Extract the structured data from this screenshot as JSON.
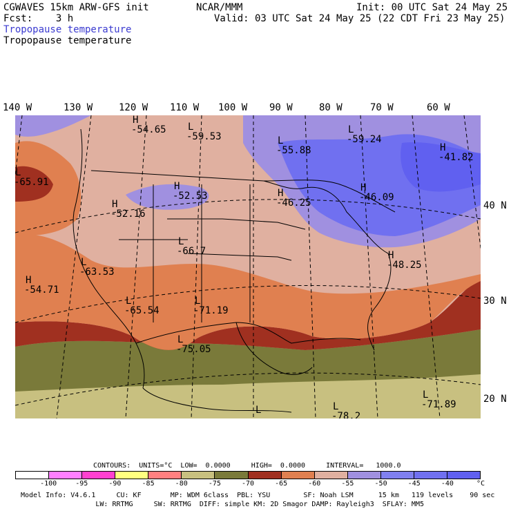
{
  "header": {
    "model": "CGWAVES 15km ARW-GFS init",
    "fcst": "Fcst:    3 h",
    "org": "NCAR/MMM",
    "init": "Init: 00 UTC Sat 24 May 25",
    "valid": "Valid: 03 UTC Sat 24 May 25 (22 CDT Fri 23 May 25)",
    "field_title_colored": "Tropopause temperature",
    "field_title": "Tropopause temperature"
  },
  "longitudes": [
    "140 W",
    "130 W",
    "120 W",
    "110 W",
    "100 W",
    "90 W",
    "80 W",
    "70 W",
    "60 W"
  ],
  "latitudes": [
    "40 N",
    "30 N",
    "20 N"
  ],
  "map_labels": [
    {
      "sym": "H",
      "val": "-54.65"
    },
    {
      "sym": "L",
      "val": "-59.53"
    },
    {
      "sym": "L",
      "val": "-55.88"
    },
    {
      "sym": "L",
      "val": "-59.24"
    },
    {
      "sym": "H",
      "val": "-41.82"
    },
    {
      "sym": "L",
      "val": "-65.91"
    },
    {
      "sym": "H",
      "val": "-52.53"
    },
    {
      "sym": "H",
      "val": "-46.25"
    },
    {
      "sym": "H",
      "val": "-46.09"
    },
    {
      "sym": "H",
      "val": "-52.16"
    },
    {
      "sym": "L",
      "val": "-66.7"
    },
    {
      "sym": "L",
      "val": "-63.53"
    },
    {
      "sym": "H",
      "val": "-48.25"
    },
    {
      "sym": "H",
      "val": "-54.71"
    },
    {
      "sym": "L",
      "val": "-65.54"
    },
    {
      "sym": "L",
      "val": "-71.19"
    },
    {
      "sym": "L",
      "val": "-75.05"
    },
    {
      "sym": "L",
      "val": "-71.89"
    },
    {
      "sym": "L",
      "val": "-78.2"
    },
    {
      "sym": "L",
      "val": ""
    }
  ],
  "contours_line": "CONTOURS:  UNITS=°C  LOW=  0.0000     HIGH=  0.0000     INTERVAL=   1000.0",
  "colorbar": {
    "colors": [
      "#ffffff",
      "#ff80ff",
      "#ff40d0",
      "#ffff80",
      "#ff8080",
      "#c8c080",
      "#7a7a3a",
      "#a03020",
      "#e08050",
      "#e0b0a0",
      "#a090e0",
      "#8080f0",
      "#7070f0",
      "#6060f0"
    ],
    "ticks": [
      "-100",
      "-95",
      "-90",
      "-85",
      "-80",
      "-75",
      "-70",
      "-65",
      "-60",
      "-55",
      "-50",
      "-45",
      "-40",
      "°C"
    ]
  },
  "model_info_1": "Model Info: V4.6.1     CU: KF       MP: WDM 6class  PBL: YSU        SF: Noah LSM      15 km   119 levels    90 sec",
  "model_info_2": "                  LW: RRTMG     SW: RRTMG  DIFF: simple KM: 2D Smagor DAMP: Rayleigh3  SFLAY: MM5"
}
